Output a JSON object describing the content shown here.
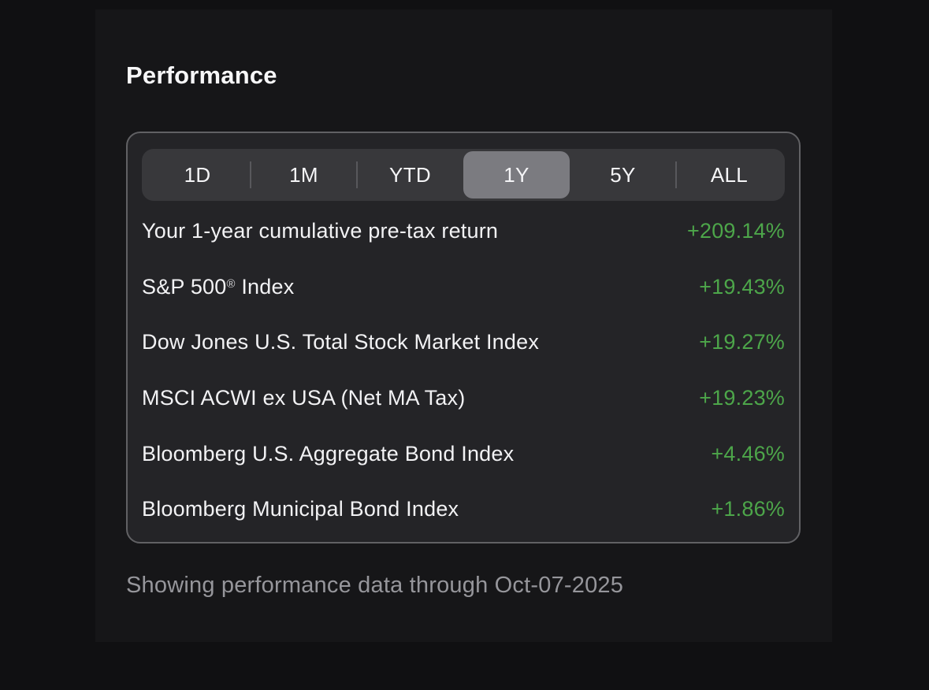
{
  "title": "Performance",
  "timeframe_tabs": {
    "selected": "1Y",
    "items": [
      {
        "label": "1D"
      },
      {
        "label": "1M"
      },
      {
        "label": "YTD"
      },
      {
        "label": "1Y"
      },
      {
        "label": "5Y"
      },
      {
        "label": "ALL"
      }
    ]
  },
  "performance_rows": [
    {
      "label": "Your 1-year cumulative pre-tax return",
      "value": "+209.14%"
    },
    {
      "label": "S&P 500® Index",
      "value": "+19.43%"
    },
    {
      "label": "Dow Jones U.S. Total Stock Market Index",
      "value": "+19.27%"
    },
    {
      "label": "MSCI ACWI ex USA (Net MA Tax)",
      "value": "+19.23%"
    },
    {
      "label": "Bloomberg U.S. Aggregate Bond Index",
      "value": "+4.46%"
    },
    {
      "label": "Bloomberg Municipal Bond Index",
      "value": "+1.86%"
    }
  ],
  "footer_note": "Showing performance data through Oct-07-2025",
  "colors": {
    "positive_value": "#4DA64A"
  }
}
